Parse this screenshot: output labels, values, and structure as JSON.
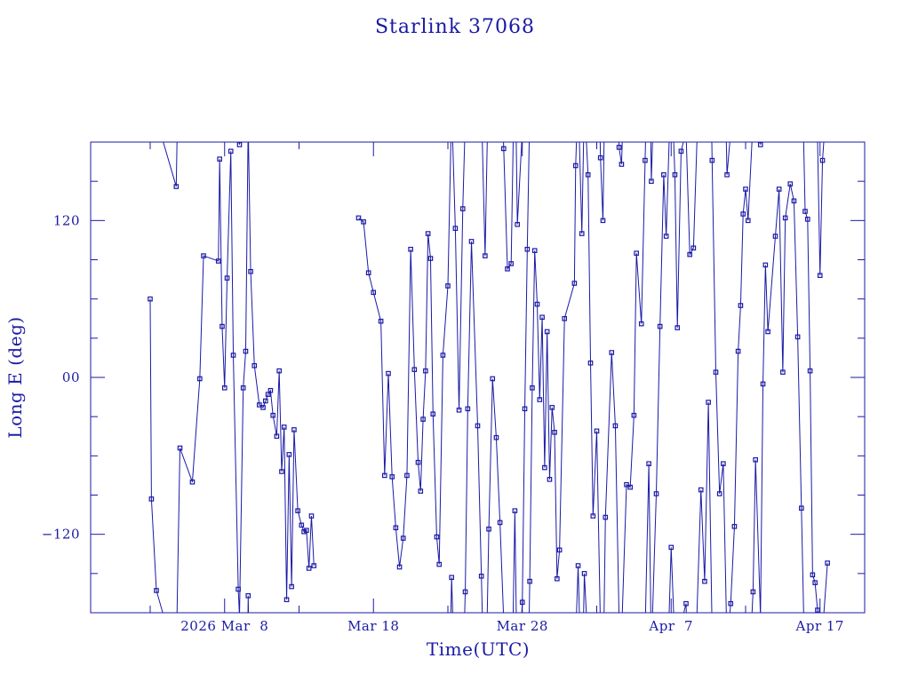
{
  "chart_data": {
    "type": "scatter",
    "title": "Starlink 37068",
    "xlabel": "Time(UTC)",
    "ylabel": "Long E (deg)",
    "x_axis": "date",
    "xlim": [
      "2026-02-27T00:00",
      "2026-04-20T00:00"
    ],
    "ylim": [
      -180,
      180
    ],
    "x_tick_labels": [
      {
        "label": "2026 Mar  8",
        "date": "2026-03-08"
      },
      {
        "label": "Mar 18",
        "date": "2026-03-18"
      },
      {
        "label": "Mar 28",
        "date": "2026-03-28"
      },
      {
        "label": "Apr  7",
        "date": "2026-04-07"
      },
      {
        "label": "Apr 17",
        "date": "2026-04-17"
      }
    ],
    "y_ticks": [
      120,
      0,
      -120
    ],
    "y_tick_labels": [
      "120",
      "00",
      "−120"
    ],
    "color": "#1a1aa6",
    "markers": "square",
    "grid": false,
    "series": [
      {
        "points": [
          [
            "2026-03-03T00:00",
            60
          ],
          [
            "2026-03-03T02:00",
            -93
          ],
          [
            "2026-03-03T10:00",
            -163
          ],
          [
            "2026-03-04T18:00",
            146
          ],
          [
            "2026-03-05T00:00",
            -54
          ],
          [
            "2026-03-05T20:00",
            -80
          ],
          [
            "2026-03-06T08:00",
            -1
          ],
          [
            "2026-03-06T14:00",
            93
          ],
          [
            "2026-03-07T14:00",
            89
          ],
          [
            "2026-03-07T16:00",
            167
          ],
          [
            "2026-03-07T20:00",
            39
          ],
          [
            "2026-03-08T00:00",
            -8
          ],
          [
            "2026-03-08T04:00",
            76
          ],
          [
            "2026-03-08T10:00",
            173
          ],
          [
            "2026-03-08T14:00",
            17
          ],
          [
            "2026-03-08T22:00",
            -162
          ],
          [
            "2026-03-09T00:00",
            178
          ],
          [
            "2026-03-09T06:00",
            -8
          ],
          [
            "2026-03-09T10:00",
            20
          ],
          [
            "2026-03-09T14:00",
            -167
          ],
          [
            "2026-03-09T18:00",
            81
          ],
          [
            "2026-03-10T00:00",
            9
          ],
          [
            "2026-03-10T08:00",
            -21
          ],
          [
            "2026-03-10T14:00",
            -23
          ],
          [
            "2026-03-10T18:00",
            -18
          ],
          [
            "2026-03-10T22:00",
            -13
          ],
          [
            "2026-03-11T02:00",
            -10
          ],
          [
            "2026-03-11T06:00",
            -29
          ],
          [
            "2026-03-11T12:00",
            -45
          ],
          [
            "2026-03-11T16:00",
            5
          ],
          [
            "2026-03-11T20:00",
            -72
          ],
          [
            "2026-03-12T00:00",
            -38
          ],
          [
            "2026-03-12T04:00",
            -170
          ],
          [
            "2026-03-12T08:00",
            -59
          ],
          [
            "2026-03-12T12:00",
            -160
          ],
          [
            "2026-03-12T16:00",
            -40
          ],
          [
            "2026-03-12T22:00",
            -102
          ],
          [
            "2026-03-13T04:00",
            -113
          ],
          [
            "2026-03-13T08:00",
            -118
          ],
          [
            "2026-03-13T12:00",
            -117
          ],
          [
            "2026-03-13T16:00",
            -146
          ],
          [
            "2026-03-13T20:00",
            -106
          ],
          [
            "2026-03-14T00:00",
            -144
          ],
          [
            "2026-03-17T00:00",
            122
          ],
          [
            "2026-03-17T08:00",
            119
          ],
          [
            "2026-03-17T16:00",
            80
          ],
          [
            "2026-03-18T00:00",
            65
          ],
          [
            "2026-03-18T12:00",
            43
          ],
          [
            "2026-03-18T18:00",
            -75
          ],
          [
            "2026-03-19T00:00",
            3
          ],
          [
            "2026-03-19T06:00",
            -76
          ],
          [
            "2026-03-19T12:00",
            -115
          ],
          [
            "2026-03-19T18:00",
            -145
          ],
          [
            "2026-03-20T00:00",
            -123
          ],
          [
            "2026-03-20T06:00",
            -75
          ],
          [
            "2026-03-20T12:00",
            98
          ],
          [
            "2026-03-20T18:00",
            6
          ],
          [
            "2026-03-21T00:00",
            -65
          ],
          [
            "2026-03-21T04:00",
            -87
          ],
          [
            "2026-03-21T08:00",
            -32
          ],
          [
            "2026-03-21T12:00",
            5
          ],
          [
            "2026-03-21T16:00",
            110
          ],
          [
            "2026-03-21T20:00",
            91
          ],
          [
            "2026-03-22T00:00",
            -28
          ],
          [
            "2026-03-22T06:00",
            -122
          ],
          [
            "2026-03-22T10:00",
            -143
          ],
          [
            "2026-03-22T16:00",
            17
          ],
          [
            "2026-03-23T00:00",
            70
          ],
          [
            "2026-03-23T06:00",
            -153
          ],
          [
            "2026-03-23T12:00",
            114
          ],
          [
            "2026-03-23T18:00",
            -25
          ],
          [
            "2026-03-24T00:00",
            129
          ],
          [
            "2026-03-24T04:00",
            -164
          ],
          [
            "2026-03-24T08:00",
            -24
          ],
          [
            "2026-03-24T14:00",
            104
          ],
          [
            "2026-03-25T00:00",
            -37
          ],
          [
            "2026-03-25T06:00",
            -152
          ],
          [
            "2026-03-25T12:00",
            93
          ],
          [
            "2026-03-25T18:00",
            -116
          ],
          [
            "2026-03-26T00:00",
            -1
          ],
          [
            "2026-03-26T06:00",
            -46
          ],
          [
            "2026-03-26T12:00",
            -111
          ],
          [
            "2026-03-26T18:00",
            175
          ],
          [
            "2026-03-27T00:00",
            83
          ],
          [
            "2026-03-27T06:00",
            87
          ],
          [
            "2026-03-27T12:00",
            -102
          ],
          [
            "2026-03-27T16:00",
            117
          ],
          [
            "2026-03-28T00:00",
            -172
          ],
          [
            "2026-03-28T04:00",
            -24
          ],
          [
            "2026-03-28T08:00",
            98
          ],
          [
            "2026-03-28T12:00",
            -156
          ],
          [
            "2026-03-28T16:00",
            -8
          ],
          [
            "2026-03-28T20:00",
            97
          ],
          [
            "2026-03-29T00:00",
            56
          ],
          [
            "2026-03-29T04:00",
            -17
          ],
          [
            "2026-03-29T08:00",
            46
          ],
          [
            "2026-03-29T12:00",
            -69
          ],
          [
            "2026-03-29T16:00",
            35
          ],
          [
            "2026-03-29T20:00",
            -78
          ],
          [
            "2026-03-30T00:00",
            -23
          ],
          [
            "2026-03-30T04:00",
            -42
          ],
          [
            "2026-03-30T08:00",
            -154
          ],
          [
            "2026-03-30T12:00",
            -132
          ],
          [
            "2026-03-30T20:00",
            45
          ],
          [
            "2026-03-31T12:00",
            72
          ],
          [
            "2026-03-31T14:00",
            162
          ],
          [
            "2026-03-31T18:00",
            -144
          ],
          [
            "2026-04-01T00:00",
            110
          ],
          [
            "2026-04-01T04:00",
            -150
          ],
          [
            "2026-04-01T10:00",
            155
          ],
          [
            "2026-04-01T14:00",
            11
          ],
          [
            "2026-04-01T18:00",
            -106
          ],
          [
            "2026-04-02T00:00",
            -41
          ],
          [
            "2026-04-02T06:00",
            168
          ],
          [
            "2026-04-02T10:00",
            120
          ],
          [
            "2026-04-02T14:00",
            -107
          ],
          [
            "2026-04-03T00:00",
            19
          ],
          [
            "2026-04-03T06:00",
            -37
          ],
          [
            "2026-04-03T12:00",
            176
          ],
          [
            "2026-04-03T16:00",
            163
          ],
          [
            "2026-04-04T00:00",
            -82
          ],
          [
            "2026-04-04T06:00",
            -84
          ],
          [
            "2026-04-04T12:00",
            -29
          ],
          [
            "2026-04-04T16:00",
            95
          ],
          [
            "2026-04-05T00:00",
            41
          ],
          [
            "2026-04-05T06:00",
            166
          ],
          [
            "2026-04-05T12:00",
            -66
          ],
          [
            "2026-04-05T16:00",
            150
          ],
          [
            "2026-04-06T00:00",
            -89
          ],
          [
            "2026-04-06T06:00",
            39
          ],
          [
            "2026-04-06T12:00",
            155
          ],
          [
            "2026-04-06T16:00",
            108
          ],
          [
            "2026-04-07T00:00",
            -130
          ],
          [
            "2026-04-07T06:00",
            155
          ],
          [
            "2026-04-07T10:00",
            38
          ],
          [
            "2026-04-07T16:00",
            173
          ],
          [
            "2026-04-08T00:00",
            -173
          ],
          [
            "2026-04-08T06:00",
            94
          ],
          [
            "2026-04-08T12:00",
            99
          ],
          [
            "2026-04-09T00:00",
            -86
          ],
          [
            "2026-04-09T06:00",
            -156
          ],
          [
            "2026-04-09T12:00",
            -19
          ],
          [
            "2026-04-09T18:00",
            166
          ],
          [
            "2026-04-10T00:00",
            4
          ],
          [
            "2026-04-10T06:00",
            -89
          ],
          [
            "2026-04-10T12:00",
            -66
          ],
          [
            "2026-04-10T18:00",
            155
          ],
          [
            "2026-04-11T00:00",
            -173
          ],
          [
            "2026-04-11T06:00",
            -114
          ],
          [
            "2026-04-11T12:00",
            20
          ],
          [
            "2026-04-11T16:00",
            55
          ],
          [
            "2026-04-11T20:00",
            125
          ],
          [
            "2026-04-12T00:00",
            144
          ],
          [
            "2026-04-12T04:00",
            120
          ],
          [
            "2026-04-12T12:00",
            -164
          ],
          [
            "2026-04-12T16:00",
            -63
          ],
          [
            "2026-04-13T00:00",
            178
          ],
          [
            "2026-04-13T04:00",
            -5
          ],
          [
            "2026-04-13T08:00",
            86
          ],
          [
            "2026-04-13T12:00",
            35
          ],
          [
            "2026-04-14T00:00",
            108
          ],
          [
            "2026-04-14T06:00",
            144
          ],
          [
            "2026-04-14T12:00",
            4
          ],
          [
            "2026-04-14T16:00",
            122
          ],
          [
            "2026-04-15T00:00",
            148
          ],
          [
            "2026-04-15T06:00",
            135
          ],
          [
            "2026-04-15T12:00",
            31
          ],
          [
            "2026-04-15T18:00",
            -100
          ],
          [
            "2026-04-16T00:00",
            127
          ],
          [
            "2026-04-16T04:00",
            121
          ],
          [
            "2026-04-16T08:00",
            5
          ],
          [
            "2026-04-16T12:00",
            -151
          ],
          [
            "2026-04-16T16:00",
            -157
          ],
          [
            "2026-04-16T20:00",
            -178
          ],
          [
            "2026-04-17T00:00",
            78
          ],
          [
            "2026-04-17T04:00",
            166
          ],
          [
            "2026-04-17T12:00",
            -142
          ]
        ]
      }
    ]
  }
}
